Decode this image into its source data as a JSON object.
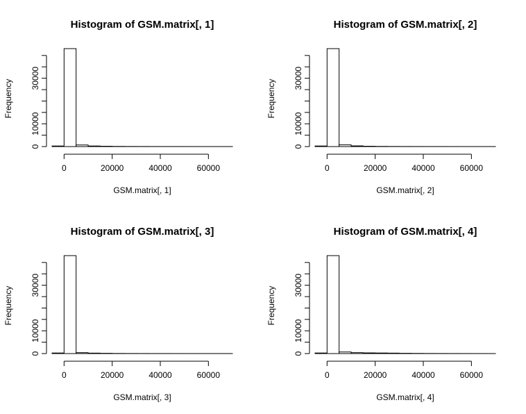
{
  "chart_data": [
    {
      "type": "bar",
      "title": "Histogram of GSM.matrix[, 1]",
      "xlabel": "GSM.matrix[, 1]",
      "ylabel": "Frequency",
      "xlim": [
        -5000,
        70000
      ],
      "ylim": [
        0,
        43000
      ],
      "x_ticks": [
        0,
        20000,
        40000,
        60000
      ],
      "y_ticks": [
        0,
        10000,
        30000
      ],
      "bin_edges": [
        -5000,
        0,
        5000,
        10000,
        15000,
        20000,
        25000,
        30000,
        35000,
        40000,
        45000,
        50000,
        55000,
        60000,
        65000,
        70000
      ],
      "counts": [
        250,
        43000,
        700,
        250,
        150,
        80,
        50,
        40,
        30,
        20,
        20,
        15,
        10,
        10,
        10
      ]
    },
    {
      "type": "bar",
      "title": "Histogram of GSM.matrix[, 2]",
      "xlabel": "GSM.matrix[, 2]",
      "ylabel": "Frequency",
      "xlim": [
        -5000,
        70000
      ],
      "ylim": [
        0,
        43000
      ],
      "x_ticks": [
        0,
        20000,
        40000,
        60000
      ],
      "y_ticks": [
        0,
        10000,
        30000
      ],
      "bin_edges": [
        -5000,
        0,
        5000,
        10000,
        15000,
        20000,
        25000,
        30000,
        35000,
        40000,
        45000,
        50000,
        55000,
        60000,
        65000,
        70000
      ],
      "counts": [
        250,
        43000,
        750,
        300,
        150,
        80,
        50,
        40,
        30,
        20,
        20,
        15,
        10,
        10,
        10
      ]
    },
    {
      "type": "bar",
      "title": "Histogram of GSM.matrix[, 3]",
      "xlabel": "GSM.matrix[, 3]",
      "ylabel": "Frequency",
      "xlim": [
        -5000,
        70000
      ],
      "ylim": [
        0,
        43000
      ],
      "x_ticks": [
        0,
        20000,
        40000,
        60000
      ],
      "y_ticks": [
        0,
        10000,
        30000
      ],
      "bin_edges": [
        -5000,
        0,
        5000,
        10000,
        15000,
        20000,
        25000,
        30000,
        35000,
        40000,
        45000,
        50000,
        55000,
        60000,
        65000,
        70000
      ],
      "counts": [
        250,
        43000,
        400,
        200,
        120,
        60,
        40,
        30,
        20,
        20,
        15,
        10,
        10,
        10,
        10
      ]
    },
    {
      "type": "bar",
      "title": "Histogram of GSM.matrix[, 4]",
      "xlabel": "GSM.matrix[, 4]",
      "ylabel": "Frequency",
      "xlim": [
        -5000,
        70000
      ],
      "ylim": [
        0,
        43000
      ],
      "x_ticks": [
        0,
        20000,
        40000,
        60000
      ],
      "y_ticks": [
        0,
        10000,
        30000
      ],
      "bin_edges": [
        -5000,
        0,
        5000,
        10000,
        15000,
        20000,
        25000,
        30000,
        35000,
        40000,
        45000,
        50000,
        55000,
        60000,
        65000,
        70000
      ],
      "counts": [
        250,
        43000,
        700,
        400,
        300,
        250,
        200,
        120,
        80,
        50,
        40,
        30,
        20,
        15,
        10
      ]
    }
  ]
}
